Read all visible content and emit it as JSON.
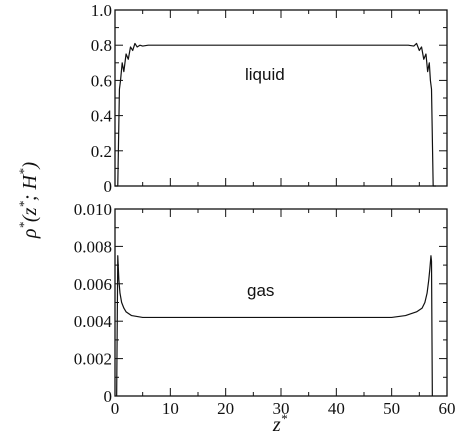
{
  "chart_data": [
    {
      "type": "line",
      "panel": "top",
      "annotation": "liquid",
      "xlim": [
        0,
        60
      ],
      "ylim": [
        0,
        1.0
      ],
      "x_ticks": [
        "0",
        "10",
        "20",
        "30",
        "40",
        "50",
        "60"
      ],
      "y_ticks": [
        "0",
        "0.2",
        "0.4",
        "0.6",
        "0.8",
        "1.0"
      ],
      "series": [
        {
          "x": [
            0.0,
            0.5,
            0.8,
            1.0,
            1.3,
            1.6,
            2.0,
            2.4,
            2.8,
            3.2,
            3.6,
            4.0,
            4.5,
            5.0,
            6.0,
            10.0,
            20.0,
            30.0,
            40.0,
            50.0,
            53.0,
            54.0,
            54.5,
            55.0,
            55.4,
            55.8,
            56.2,
            56.5,
            56.8,
            57.0,
            57.2,
            57.5,
            58.0
          ],
          "y": [
            0.0,
            0.0,
            0.55,
            0.6,
            0.7,
            0.65,
            0.75,
            0.72,
            0.79,
            0.77,
            0.81,
            0.79,
            0.8,
            0.795,
            0.8,
            0.8,
            0.8,
            0.8,
            0.8,
            0.8,
            0.8,
            0.795,
            0.81,
            0.77,
            0.79,
            0.72,
            0.75,
            0.65,
            0.7,
            0.6,
            0.55,
            0.0,
            0.0
          ]
        }
      ]
    },
    {
      "type": "line",
      "panel": "bottom",
      "annotation": "gas",
      "xlim": [
        0,
        60
      ],
      "ylim": [
        0,
        0.01
      ],
      "xlabel": "z*",
      "x_ticks": [
        "0",
        "10",
        "20",
        "30",
        "40",
        "50",
        "60"
      ],
      "y_ticks": [
        "0",
        "0.002",
        "0.004",
        "0.006",
        "0.008",
        "0.010"
      ],
      "series": [
        {
          "x": [
            0.3,
            0.5,
            0.7,
            0.9,
            1.2,
            1.6,
            2.0,
            3.0,
            5.0,
            10.0,
            20.0,
            30.0,
            40.0,
            50.0,
            52.5,
            54.5,
            55.5,
            56.0,
            56.4,
            56.7,
            56.9,
            57.1,
            57.2,
            57.35
          ],
          "y": [
            0.0,
            0.0075,
            0.0062,
            0.0055,
            0.005,
            0.0047,
            0.0045,
            0.0043,
            0.0042,
            0.0042,
            0.0042,
            0.0042,
            0.0042,
            0.0042,
            0.0043,
            0.0045,
            0.0047,
            0.005,
            0.0055,
            0.0062,
            0.0068,
            0.0075,
            0.0072,
            0.0
          ]
        }
      ]
    }
  ],
  "shared_ylabel": "ρ*(z*; H*)"
}
